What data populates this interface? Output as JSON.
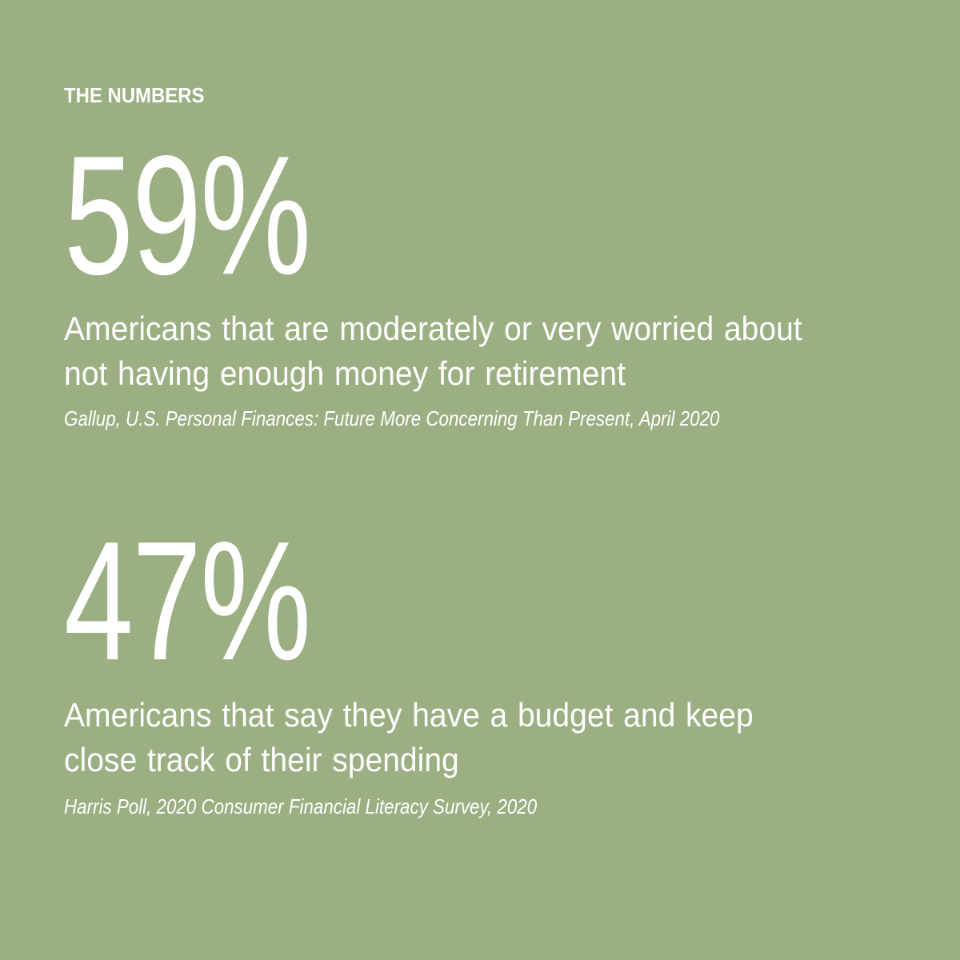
{
  "background_color": "#9caf83",
  "text_color": "#ffffff",
  "eyebrow": "THE NUMBERS",
  "stats": [
    {
      "value": "59%",
      "description": "Americans that are moderately or very worried about not having enough money for retirement",
      "source": "Gallup, U.S. Personal Finances: Future More Concerning Than Present, April 2020"
    },
    {
      "value": "47%",
      "description": "Americans that say they have a budget and keep close track of their spending",
      "source": "Harris Poll, 2020 Consumer Financial Literacy Survey, 2020"
    }
  ]
}
